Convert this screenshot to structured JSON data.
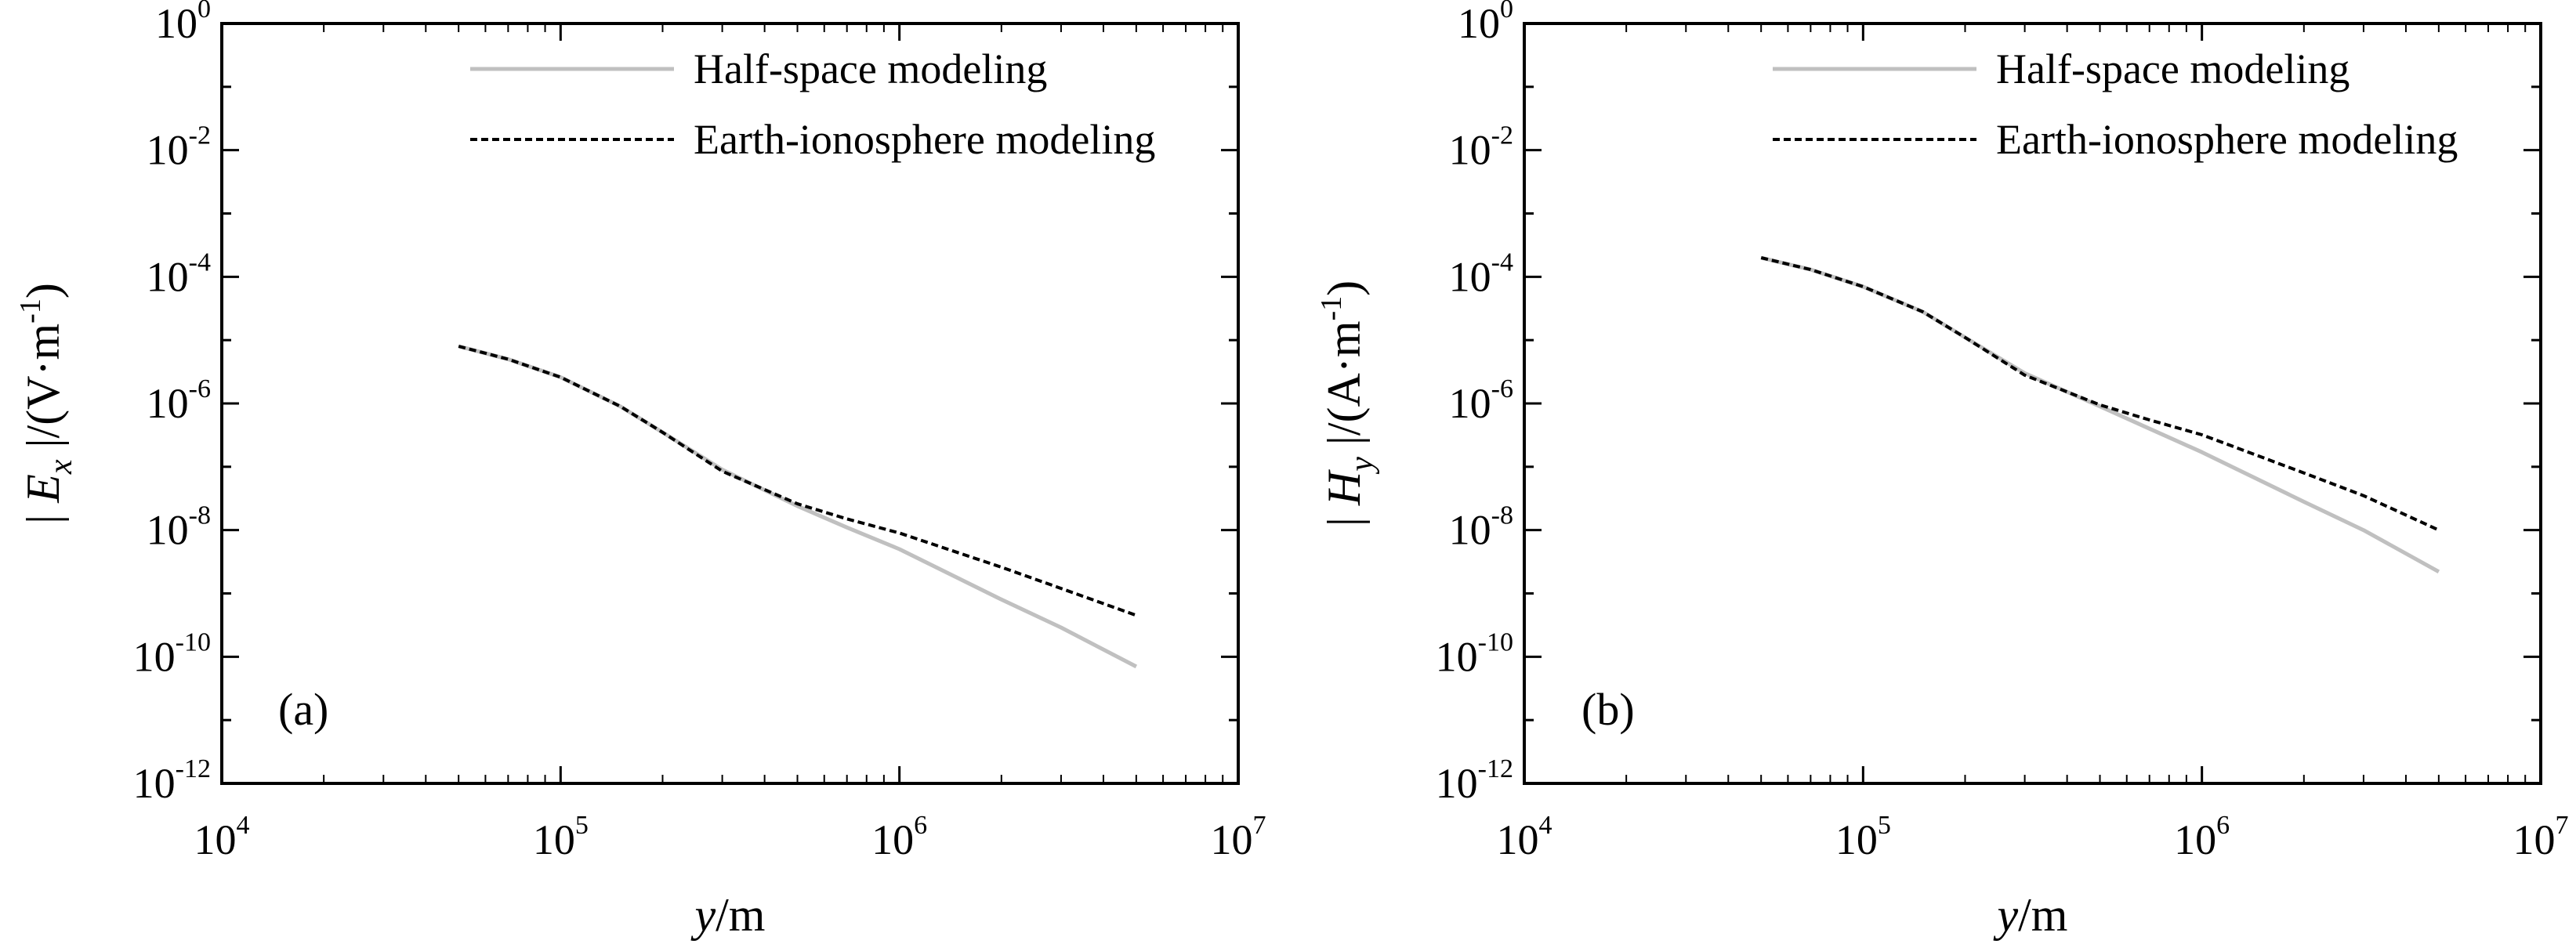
{
  "chart_data": [
    {
      "type": "line",
      "panel_label": "(a)",
      "xscale": "log",
      "yscale": "log",
      "xlim": [
        10000,
        10000000
      ],
      "ylim": [
        1e-12,
        1
      ],
      "x_ticks": [
        {
          "base": "10",
          "exp": "4"
        },
        {
          "base": "10",
          "exp": "5"
        },
        {
          "base": "10",
          "exp": "6"
        },
        {
          "base": "10",
          "exp": "7"
        }
      ],
      "y_ticks": [
        {
          "base": "10",
          "exp": "0"
        },
        {
          "base": "10",
          "exp": "-2"
        },
        {
          "base": "10",
          "exp": "-4"
        },
        {
          "base": "10",
          "exp": "-6"
        },
        {
          "base": "10",
          "exp": "-8"
        },
        {
          "base": "10",
          "exp": "-10"
        },
        {
          "base": "10",
          "exp": "-12"
        }
      ],
      "xlabel": {
        "var": "y",
        "unit": "/m"
      },
      "ylabel": {
        "pre": "| ",
        "var": "E",
        "sub": "x",
        "post": " |/(V·m",
        "sup": "-1",
        "end": ")"
      },
      "legend_position": "top-right",
      "grid": false,
      "series": [
        {
          "name": "Half-space modeling",
          "color": "#c0c0c0",
          "dash": "solid",
          "points": [
            [
              50000,
              8e-06
            ],
            [
              70000,
              5e-06
            ],
            [
              100000,
              2.6e-06
            ],
            [
              150000,
              9e-07
            ],
            [
              200000,
              3.5e-07
            ],
            [
              300000,
              9e-08
            ],
            [
              500000,
              2.4e-08
            ],
            [
              700000,
              1.1e-08
            ],
            [
              1000000,
              5e-09
            ],
            [
              2000000,
              8e-10
            ],
            [
              3000000,
              2.9e-10
            ],
            [
              5000000,
              7e-11
            ]
          ]
        },
        {
          "name": "Earth-ionosphere modeling",
          "color": "#000000",
          "dash": "dashed",
          "points": [
            [
              50000,
              8e-06
            ],
            [
              70000,
              5e-06
            ],
            [
              100000,
              2.6e-06
            ],
            [
              150000,
              9e-07
            ],
            [
              200000,
              3.5e-07
            ],
            [
              300000,
              8.5e-08
            ],
            [
              500000,
              2.6e-08
            ],
            [
              700000,
              1.5e-08
            ],
            [
              1000000,
              9e-09
            ],
            [
              2000000,
              2.6e-09
            ],
            [
              3000000,
              1.2e-09
            ],
            [
              5000000,
              4.5e-10
            ]
          ]
        }
      ]
    },
    {
      "type": "line",
      "panel_label": "(b)",
      "xscale": "log",
      "yscale": "log",
      "xlim": [
        10000,
        10000000
      ],
      "ylim": [
        1e-12,
        1
      ],
      "x_ticks": [
        {
          "base": "10",
          "exp": "4"
        },
        {
          "base": "10",
          "exp": "5"
        },
        {
          "base": "10",
          "exp": "6"
        },
        {
          "base": "10",
          "exp": "7"
        }
      ],
      "y_ticks": [
        {
          "base": "10",
          "exp": "0"
        },
        {
          "base": "10",
          "exp": "-2"
        },
        {
          "base": "10",
          "exp": "-4"
        },
        {
          "base": "10",
          "exp": "-6"
        },
        {
          "base": "10",
          "exp": "-8"
        },
        {
          "base": "10",
          "exp": "-10"
        },
        {
          "base": "10",
          "exp": "-12"
        }
      ],
      "xlabel": {
        "var": "y",
        "unit": "/m"
      },
      "ylabel": {
        "pre": "| ",
        "var": "H",
        "sub": "y",
        "post": " |/(A·m",
        "sup": "-1",
        "end": ")"
      },
      "legend_position": "top-right",
      "grid": false,
      "series": [
        {
          "name": "Half-space modeling",
          "color": "#c0c0c0",
          "dash": "solid",
          "points": [
            [
              50000,
              0.0002
            ],
            [
              70000,
              0.00013
            ],
            [
              100000,
              7e-05
            ],
            [
              150000,
              2.8e-05
            ],
            [
              200000,
              1.1e-05
            ],
            [
              300000,
              3e-06
            ],
            [
              500000,
              9e-07
            ],
            [
              700000,
              4e-07
            ],
            [
              1000000,
              1.7e-07
            ],
            [
              2000000,
              2.8e-08
            ],
            [
              3000000,
              1e-08
            ],
            [
              5000000,
              2.2e-09
            ]
          ]
        },
        {
          "name": "Earth-ionosphere modeling",
          "color": "#000000",
          "dash": "dashed",
          "points": [
            [
              50000,
              0.0002
            ],
            [
              70000,
              0.00013
            ],
            [
              100000,
              7e-05
            ],
            [
              150000,
              2.8e-05
            ],
            [
              200000,
              1.1e-05
            ],
            [
              300000,
              2.8e-06
            ],
            [
              500000,
              9.5e-07
            ],
            [
              700000,
              5.5e-07
            ],
            [
              1000000,
              3.2e-07
            ],
            [
              2000000,
              8e-08
            ],
            [
              3000000,
              3.5e-08
            ],
            [
              5000000,
              1e-08
            ]
          ]
        }
      ]
    }
  ]
}
